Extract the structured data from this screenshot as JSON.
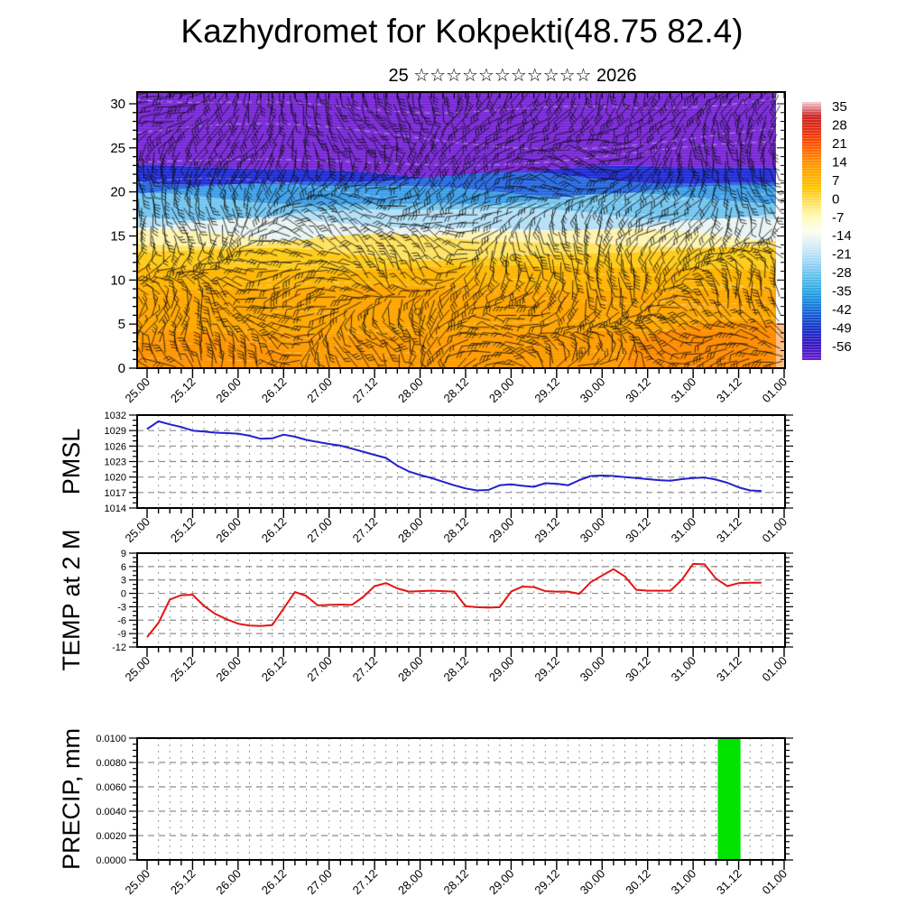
{
  "title": "Kazhydromet for Kokpekti(48.75 82.4)",
  "subtitle": "25 ☆☆☆☆☆☆☆☆☆☆☆ 2026",
  "time_axis": {
    "labels": [
      "25.00",
      "25.12",
      "26.00",
      "26.12",
      "27.00",
      "27.12",
      "28.00",
      "28.12",
      "29.00",
      "29.12",
      "30.00",
      "30.12",
      "31.00",
      "31.12",
      "01.00"
    ],
    "major_step_hours": 12,
    "minor_step_hours": 3,
    "total_hours": 168
  },
  "chart_data": [
    {
      "type": "heatmap",
      "id": "cross_section",
      "description": "time-height cross-section, temperature shading with wind barbs",
      "ylim": [
        0,
        30
      ],
      "yticks": [
        0,
        5,
        10,
        15,
        20,
        25,
        30
      ],
      "temperature_bands": [
        {
          "y_top": 30,
          "y_bottom": 22.4,
          "color": "#7b2ad8"
        },
        {
          "y_top": 22.4,
          "y_bottom": 21.4,
          "color": "#2430d8"
        },
        {
          "y_top": 21.4,
          "y_bottom": 20.3,
          "color": "#2a6ce4"
        },
        {
          "y_top": 20.3,
          "y_bottom": 19.0,
          "color": "#3fa0ea"
        },
        {
          "y_top": 19.0,
          "y_bottom": 17.6,
          "color": "#74c6f0"
        },
        {
          "y_top": 17.6,
          "y_bottom": 16.2,
          "color": "#b4e0f6"
        },
        {
          "y_top": 16.2,
          "y_bottom": 15.2,
          "color": "#e9f4f2"
        },
        {
          "y_top": 15.2,
          "y_bottom": 14.4,
          "color": "#fdf3ae"
        },
        {
          "y_top": 14.4,
          "y_bottom": 13.0,
          "color": "#ffe25e"
        },
        {
          "y_top": 13.0,
          "y_bottom": 11.4,
          "color": "#ffcb18"
        },
        {
          "y_top": 11.4,
          "y_bottom": 9.0,
          "color": "#ffb602"
        },
        {
          "y_top": 9.0,
          "y_bottom": 4.0,
          "color": "#ffa800"
        },
        {
          "y_top": 4.0,
          "y_bottom": 0.0,
          "color": "#ff9c00"
        }
      ],
      "colorbar": {
        "tick_labels": [
          "35",
          "28",
          "21",
          "14",
          "7",
          "0",
          "-7",
          "-14",
          "-21",
          "-28",
          "-35",
          "-42",
          "-49",
          "-56"
        ],
        "gradient": [
          "#f4ccd4",
          "#cc2222",
          "#e83010",
          "#ff5500",
          "#ff8800",
          "#ffaa00",
          "#ffc400",
          "#ffe066",
          "#fffab4",
          "#fdfdf0",
          "#d8ecf8",
          "#a6daf4",
          "#6ac4ee",
          "#30aee8",
          "#1a86dc",
          "#1654d4",
          "#1c2cc4",
          "#3a16c0",
          "#6c1ed2"
        ]
      }
    },
    {
      "type": "line",
      "id": "pmsl",
      "label": "PMSL",
      "line_color": "#2121cd",
      "ylim": [
        1014,
        1032
      ],
      "yticks": [
        1014,
        1017,
        1020,
        1023,
        1026,
        1029,
        1032
      ],
      "x_start_hours": 0,
      "x_step_hours": 3,
      "values": [
        1029.3,
        1030.8,
        1030.2,
        1029.7,
        1029.0,
        1028.8,
        1028.6,
        1028.5,
        1028.4,
        1028.0,
        1027.4,
        1027.5,
        1028.2,
        1027.8,
        1027.2,
        1026.8,
        1026.4,
        1026.1,
        1025.5,
        1024.9,
        1024.3,
        1023.7,
        1022.2,
        1021.1,
        1020.4,
        1019.8,
        1019.1,
        1018.4,
        1017.8,
        1017.4,
        1017.5,
        1018.4,
        1018.6,
        1018.3,
        1018.1,
        1018.8,
        1018.7,
        1018.4,
        1019.4,
        1020.2,
        1020.3,
        1020.2,
        1020.0,
        1019.8,
        1019.6,
        1019.4,
        1019.3,
        1019.6,
        1019.8,
        1019.9,
        1019.5,
        1018.9,
        1018.0,
        1017.4,
        1017.3
      ]
    },
    {
      "type": "line",
      "id": "temp2m",
      "label": "TEMP at 2 M",
      "line_color": "#e51414",
      "ylim": [
        -12,
        9
      ],
      "yticks": [
        -12,
        -9,
        -6,
        -3,
        0,
        3,
        6,
        9
      ],
      "x_start_hours": 0,
      "x_step_hours": 3,
      "values": [
        -9.8,
        -6.6,
        -1.4,
        -0.4,
        -0.3,
        -2.8,
        -4.6,
        -5.8,
        -6.8,
        -7.2,
        -7.3,
        -7.1,
        -3.4,
        0.3,
        -0.6,
        -2.7,
        -2.6,
        -2.5,
        -2.6,
        -0.8,
        1.6,
        2.3,
        1.1,
        0.4,
        0.5,
        0.6,
        0.5,
        0.4,
        -2.9,
        -3.1,
        -3.2,
        -3.1,
        0.4,
        1.5,
        1.4,
        0.5,
        0.4,
        0.4,
        -0.1,
        2.5,
        4.0,
        5.4,
        3.8,
        0.8,
        0.6,
        0.6,
        0.6,
        3.0,
        6.6,
        6.5,
        3.3,
        1.6,
        2.3,
        2.4,
        2.4
      ]
    },
    {
      "type": "bar",
      "id": "precip",
      "label": "PRECIP, mm",
      "bar_color": "#00e400",
      "ylim": [
        0,
        0.01
      ],
      "ytick_labels": [
        "0.0000",
        "0.0020",
        "0.0040",
        "0.0060",
        "0.0080",
        "0.0100"
      ],
      "bars": [
        {
          "from": "31.06",
          "to": "31.12",
          "start_hours": 150.5,
          "end_hours": 156.5,
          "value": 0.01
        }
      ]
    }
  ]
}
